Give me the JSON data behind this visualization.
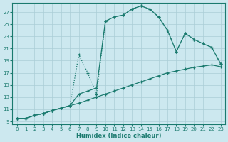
{
  "bg_color": "#cce8ef",
  "grid_color": "#aacdd6",
  "line_color": "#1a7a6e",
  "xlabel": "Humidex (Indice chaleur)",
  "xlim": [
    -0.5,
    23.5
  ],
  "ylim": [
    8.5,
    28.5
  ],
  "xticks": [
    0,
    1,
    2,
    3,
    4,
    5,
    6,
    7,
    8,
    9,
    10,
    11,
    12,
    13,
    14,
    15,
    16,
    17,
    18,
    19,
    20,
    21,
    22,
    23
  ],
  "yticks": [
    9,
    11,
    13,
    15,
    17,
    19,
    21,
    23,
    25,
    27
  ],
  "line1_x": [
    0,
    1,
    2,
    3,
    4,
    5,
    6,
    7,
    8,
    9,
    10,
    11,
    12,
    13,
    14,
    15,
    16,
    17,
    18,
    19,
    20,
    21,
    22,
    23
  ],
  "line1_y": [
    9.5,
    9.5,
    10.0,
    10.3,
    10.8,
    11.2,
    11.6,
    12.0,
    12.5,
    13.0,
    13.5,
    14.0,
    14.5,
    15.0,
    15.5,
    16.0,
    16.5,
    17.0,
    17.3,
    17.6,
    17.9,
    18.1,
    18.3,
    18.0
  ],
  "line2_x": [
    0,
    1,
    2,
    3,
    4,
    5,
    6,
    7,
    8,
    9,
    10,
    11,
    12,
    13,
    14,
    15,
    16,
    17,
    18,
    19,
    20,
    21,
    22,
    23
  ],
  "line2_y": [
    9.5,
    9.5,
    10.0,
    10.3,
    10.8,
    11.2,
    11.6,
    20.0,
    17.0,
    13.5,
    25.5,
    26.2,
    26.5,
    27.5,
    28.0,
    27.5,
    26.2,
    24.0,
    20.5,
    23.5,
    22.5,
    21.8,
    21.2,
    18.5
  ],
  "line3_x": [
    0,
    1,
    2,
    3,
    4,
    5,
    6,
    7,
    8,
    9,
    10,
    11,
    12,
    13,
    14,
    15,
    16,
    17,
    18,
    19,
    20,
    21,
    22,
    23
  ],
  "line3_y": [
    9.5,
    9.5,
    10.0,
    10.3,
    10.8,
    11.2,
    11.6,
    13.5,
    14.0,
    14.5,
    25.5,
    26.2,
    26.5,
    27.5,
    28.0,
    27.5,
    26.2,
    24.0,
    20.5,
    23.5,
    22.5,
    21.8,
    21.2,
    18.5
  ]
}
